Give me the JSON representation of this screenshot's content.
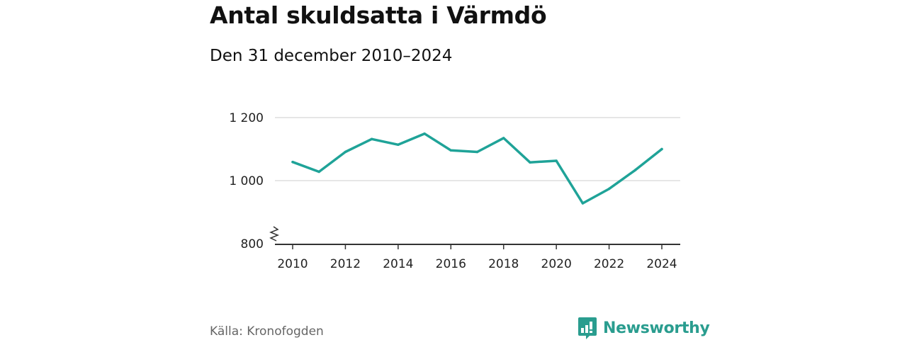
{
  "header": {
    "title": "Antal skuldsatta i Värmdö",
    "subtitle": "Den 31 december 2010–2024"
  },
  "footer": {
    "source": "Källa: Kronofogden",
    "brand": "Newsworthy",
    "brand_icon": "bar-chart-icon"
  },
  "colors": {
    "line": "#1fa398",
    "grid": "#dddddd",
    "axis": "#333333",
    "brand": "#2a9d8f"
  },
  "chart_data": {
    "type": "line",
    "title": "Antal skuldsatta i Värmdö",
    "subtitle": "Den 31 december 2010–2024",
    "xlabel": "",
    "ylabel": "",
    "x": [
      2010,
      2011,
      2012,
      2013,
      2014,
      2015,
      2016,
      2017,
      2018,
      2019,
      2020,
      2021,
      2022,
      2023,
      2024
    ],
    "series": [
      {
        "name": "Antal skuldsatta",
        "values": [
          1059,
          1028,
          1091,
          1132,
          1114,
          1149,
          1096,
          1091,
          1135,
          1058,
          1063,
          928,
          974,
          1034,
          1100
        ]
      }
    ],
    "ylim": [
      800,
      1200
    ],
    "xlim": [
      2010,
      2024
    ],
    "y_ticks": [
      {
        "value": 800,
        "label": "800"
      },
      {
        "value": 1000,
        "label": "1 000"
      },
      {
        "value": 1200,
        "label": "1 200"
      }
    ],
    "x_ticks": [
      {
        "value": 2010,
        "label": "2010"
      },
      {
        "value": 2012,
        "label": "2012"
      },
      {
        "value": 2014,
        "label": "2014"
      },
      {
        "value": 2016,
        "label": "2016"
      },
      {
        "value": 2018,
        "label": "2018"
      },
      {
        "value": 2020,
        "label": "2020"
      },
      {
        "value": 2022,
        "label": "2022"
      },
      {
        "value": 2024,
        "label": "2024"
      }
    ],
    "axis_break": true,
    "grid": true,
    "legend": "none"
  }
}
